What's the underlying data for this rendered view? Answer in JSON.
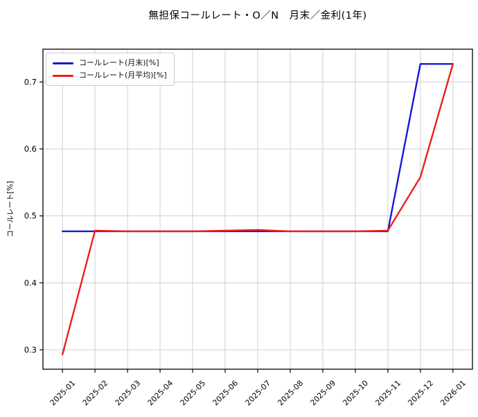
{
  "figure": {
    "title": "無担保コールレート・O／N　月末／金利(1年)"
  },
  "chart_data": {
    "type": "line",
    "title": "無担保コールレート・O／N　月末／金利(1年)",
    "xlabel": "",
    "ylabel": "コールレート[%]",
    "categories": [
      "2025-01",
      "2025-02",
      "2025-03",
      "2025-04",
      "2025-05",
      "2025-06",
      "2025-07",
      "2025-08",
      "2025-09",
      "2025-10",
      "2025-11",
      "2025-12",
      "2026-01"
    ],
    "series": [
      {
        "key": "month-end",
        "name": "コールレート(月末)[%]",
        "color": "#1616dc",
        "values": [
          0.477,
          0.477,
          0.477,
          0.477,
          0.477,
          0.477,
          0.477,
          0.477,
          0.477,
          0.477,
          0.477,
          0.727,
          0.727
        ]
      },
      {
        "key": "month-average",
        "name": "コールレート(月平均)[%]",
        "color": "#ee1e1e",
        "values": [
          0.293,
          0.478,
          0.477,
          0.477,
          0.477,
          0.478,
          0.479,
          0.477,
          0.477,
          0.477,
          0.478,
          0.558,
          0.727
        ]
      }
    ],
    "yticks": [
      0.3,
      0.4,
      0.5,
      0.6,
      0.7
    ],
    "ylim": [
      0.271,
      0.749
    ],
    "grid": true,
    "legend_position": "upper left",
    "colors": {
      "grid": "#d0d0d0",
      "spine": "#000000",
      "tick_label": "#000000",
      "background": "#ffffff"
    }
  }
}
